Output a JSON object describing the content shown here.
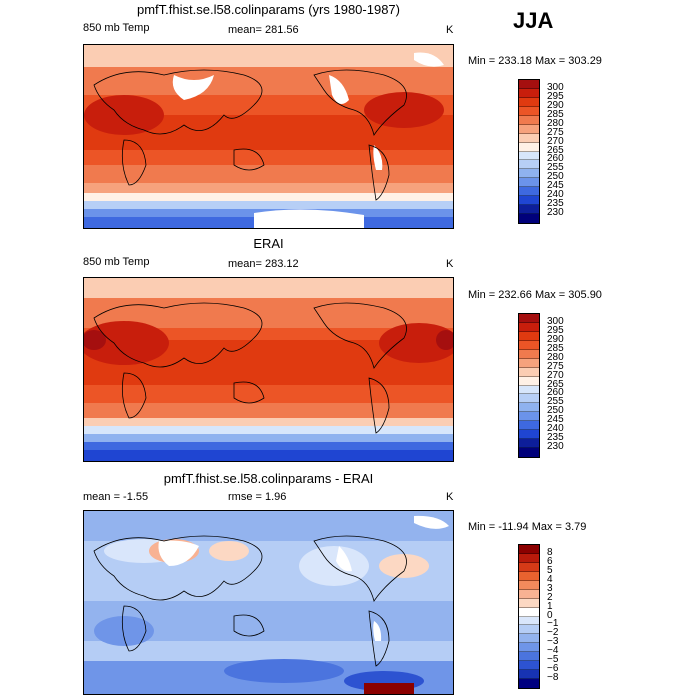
{
  "season": "JJA",
  "panels": [
    {
      "title": "pmfT.fhist.se.l58.colinparams (yrs 1980-1987)",
      "left_label": "850 mb Temp",
      "center_label": "mean=  281.56",
      "units": "K",
      "minmax": "Min = 233.18  Max = 303.29",
      "levels": [
        "300",
        "295",
        "290",
        "285",
        "280",
        "275",
        "270",
        "265",
        "260",
        "255",
        "250",
        "245",
        "240",
        "235",
        "230"
      ]
    },
    {
      "title": "ERAI",
      "left_label": "850 mb Temp",
      "center_label": "mean=  283.12",
      "units": "K",
      "minmax": "Min = 232.66  Max = 305.90",
      "levels": [
        "300",
        "295",
        "290",
        "285",
        "280",
        "275",
        "270",
        "265",
        "260",
        "255",
        "250",
        "245",
        "240",
        "235",
        "230"
      ]
    },
    {
      "title": "pmfT.fhist.se.l58.colinparams - ERAI",
      "left_label": "mean =   -1.55",
      "center_label": "rmse =    1.96",
      "units": "K",
      "minmax": "Min = -11.94  Max =    3.79",
      "levels": [
        "8",
        "6",
        "5",
        "4",
        "3",
        "2",
        "1",
        "0",
        "−1",
        "−2",
        "−3",
        "−4",
        "−5",
        "−6",
        "−8"
      ]
    }
  ],
  "colors": {
    "temp": [
      "#a50f0f",
      "#c81e0c",
      "#e03a10",
      "#ec5526",
      "#f07a4e",
      "#f6a27d",
      "#fbcdb3",
      "#fff1e6",
      "#d7e6fb",
      "#b7cff6",
      "#8fb2ef",
      "#6b93ea",
      "#3e69e0",
      "#1f45d2",
      "#0d1e9a",
      "#00007a"
    ],
    "diff": [
      "#8b0000",
      "#b81a0b",
      "#d63a17",
      "#e8622f",
      "#f28a5c",
      "#f8b293",
      "#fcd8c3",
      "#ffffff",
      "#d9e6fb",
      "#b5cdf5",
      "#93b3ee",
      "#6f95e8",
      "#4b74de",
      "#2d53d1",
      "#1733b3",
      "#000080"
    ]
  }
}
